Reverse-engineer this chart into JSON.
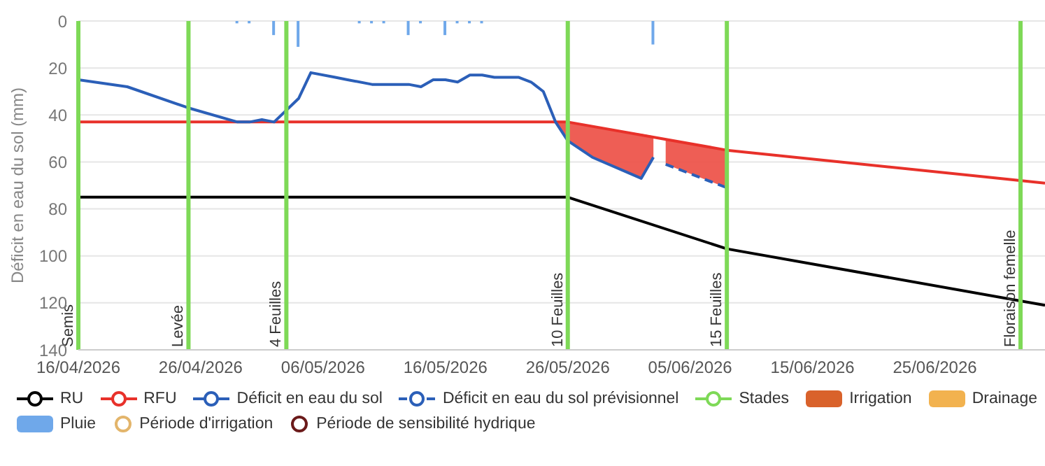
{
  "chart_data": {
    "type": "line",
    "ylabel": "Déficit en eau du sol (mm)",
    "xlim": [
      "2026-04-16",
      "2026-07-04"
    ],
    "xticks": [
      {
        "value": "2026-04-16",
        "label": "16/04/2026"
      },
      {
        "value": "2026-04-26",
        "label": "26/04/2026"
      },
      {
        "value": "2026-05-06",
        "label": "06/05/2026"
      },
      {
        "value": "2026-05-16",
        "label": "16/05/2026"
      },
      {
        "value": "2026-05-26",
        "label": "26/05/2026"
      },
      {
        "value": "2026-06-05",
        "label": "05/06/2026"
      },
      {
        "value": "2026-06-15",
        "label": "15/06/2026"
      },
      {
        "value": "2026-06-25",
        "label": "25/06/2026"
      }
    ],
    "ylim": [
      140,
      0
    ],
    "yticks": [
      0,
      20,
      40,
      60,
      80,
      100,
      120,
      140
    ],
    "grid": "y",
    "legend": "bottom",
    "series": [
      {
        "name": "RU",
        "color": "#000000",
        "x": [
          "2026-04-16",
          "2026-05-26",
          "2026-06-08",
          "2026-07-04"
        ],
        "values": [
          75,
          75,
          97,
          121
        ]
      },
      {
        "name": "RFU",
        "color": "#e8312a",
        "x": [
          "2026-04-16",
          "2026-05-26",
          "2026-06-08",
          "2026-07-04"
        ],
        "values": [
          43,
          43,
          55,
          69
        ]
      },
      {
        "name": "Déficit en eau du sol",
        "color": "#2b5fb8",
        "x": [
          "2026-04-16",
          "2026-04-20",
          "2026-04-25",
          "2026-04-29",
          "2026-04-30",
          "2026-05-01",
          "2026-05-02",
          "2026-05-04",
          "2026-05-05",
          "2026-05-07",
          "2026-05-08",
          "2026-05-10",
          "2026-05-12",
          "2026-05-13",
          "2026-05-14",
          "2026-05-15",
          "2026-05-16",
          "2026-05-17",
          "2026-05-18",
          "2026-05-19",
          "2026-05-20",
          "2026-05-22",
          "2026-05-23",
          "2026-05-24",
          "2026-05-25",
          "2026-05-26",
          "2026-05-28",
          "2026-06-01",
          "2026-06-02"
        ],
        "values": [
          25,
          28,
          37,
          43,
          43,
          42,
          43,
          33,
          22,
          24,
          25,
          27,
          27,
          27,
          28,
          25,
          25,
          26,
          23,
          23,
          24,
          24,
          26,
          30,
          43,
          51,
          58,
          67,
          58
        ],
        "lower": [
          null,
          null,
          null,
          null,
          null,
          null,
          null,
          null,
          null,
          null,
          null,
          null,
          null,
          null,
          null,
          null,
          null,
          null,
          null,
          null,
          null,
          null,
          null,
          null,
          43,
          43,
          45,
          48,
          49
        ],
        "upper": [
          null,
          null,
          null,
          null,
          null,
          null,
          null,
          null,
          null,
          null,
          null,
          null,
          null,
          null,
          null,
          null,
          null,
          null,
          null,
          null,
          null,
          null,
          null,
          null,
          43,
          51,
          58,
          67,
          58
        ]
      },
      {
        "name": "Déficit en eau du sol prévisionnel",
        "type": "line",
        "line_style": "dashed",
        "color": "#2b5fb8",
        "x": [
          "2026-06-03",
          "2026-06-08"
        ],
        "values": [
          61,
          71
        ],
        "lower": [
          50,
          55
        ],
        "upper": [
          61,
          71
        ]
      },
      {
        "name": "Stades",
        "color": "#7ed957"
      },
      {
        "name": "Irrigation",
        "type": "bar",
        "color": "#d9622b"
      },
      {
        "name": "Drainage",
        "type": "bar",
        "color": "#f2b24f"
      },
      {
        "name": "Pluie",
        "type": "bar",
        "color": "#6fa8ea",
        "x": [
          "2026-04-29",
          "2026-04-30",
          "2026-05-02",
          "2026-05-03",
          "2026-05-04",
          "2026-05-09",
          "2026-05-10",
          "2026-05-11",
          "2026-05-13",
          "2026-05-14",
          "2026-05-16",
          "2026-05-17",
          "2026-05-18",
          "2026-05-19",
          "2026-06-02"
        ],
        "values": [
          1,
          1,
          6,
          null,
          11,
          1,
          1,
          1,
          6,
          1,
          6,
          1,
          1,
          1,
          10
        ]
      },
      {
        "name": "Période d'irrigation",
        "type": "scatter",
        "color": "#e3b56b"
      },
      {
        "name": "Période de sensibilité hydrique",
        "type": "scatter",
        "color": "#6b1a1a"
      }
    ],
    "ref_lines": [
      {
        "axis": "x",
        "value": "2026-04-16",
        "label": "Semis",
        "color": "#7ed957"
      },
      {
        "axis": "x",
        "value": "2026-04-25",
        "label": "Levée",
        "color": "#7ed957"
      },
      {
        "axis": "x",
        "value": "2026-05-03",
        "label": "4 Feuilles",
        "color": "#7ed957"
      },
      {
        "axis": "x",
        "value": "2026-05-26",
        "label": "10 Feuilles",
        "color": "#7ed957"
      },
      {
        "axis": "x",
        "value": "2026-06-08",
        "label": "15 Feuilles",
        "color": "#7ed957"
      },
      {
        "axis": "x",
        "value": "2026-07-02",
        "label": "Floraison femelle",
        "color": "#7ed957"
      }
    ]
  }
}
